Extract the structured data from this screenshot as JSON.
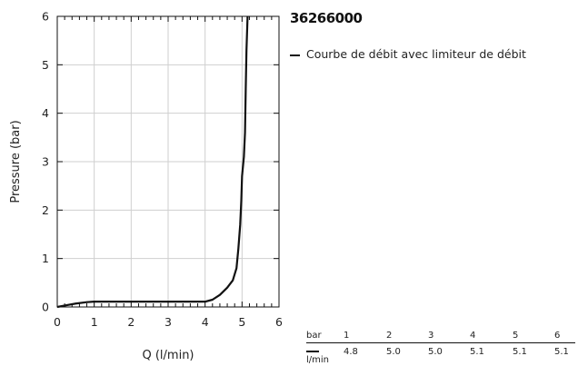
{
  "chart_data": {
    "type": "line",
    "title": "36266000",
    "xlabel": "Q (l/min)",
    "ylabel": "Pressure (bar)",
    "xlim": [
      0,
      6
    ],
    "ylim": [
      0,
      6
    ],
    "x_ticks": [
      "0",
      "1",
      "2",
      "3",
      "4",
      "5",
      "6"
    ],
    "y_ticks": [
      "0",
      "1",
      "2",
      "3",
      "4",
      "5",
      "6"
    ],
    "grid": true,
    "legend_position": "top-right",
    "series": [
      {
        "name": "Courbe de débit avec limiteur de débit",
        "color": "#111111",
        "points": [
          [
            0.0,
            0.0
          ],
          [
            0.2,
            0.03
          ],
          [
            0.5,
            0.07
          ],
          [
            0.8,
            0.1
          ],
          [
            1.0,
            0.11
          ],
          [
            2.0,
            0.11
          ],
          [
            3.0,
            0.11
          ],
          [
            4.0,
            0.11
          ],
          [
            4.2,
            0.15
          ],
          [
            4.4,
            0.25
          ],
          [
            4.6,
            0.4
          ],
          [
            4.75,
            0.55
          ],
          [
            4.85,
            0.8
          ],
          [
            4.9,
            1.2
          ],
          [
            4.95,
            1.7
          ],
          [
            4.98,
            2.2
          ],
          [
            5.0,
            2.7
          ],
          [
            5.05,
            3.1
          ],
          [
            5.08,
            3.6
          ],
          [
            5.1,
            4.5
          ],
          [
            5.12,
            5.3
          ],
          [
            5.15,
            6.0
          ]
        ]
      }
    ],
    "table": {
      "row_header_1": "bar",
      "row_header_2": "l/min",
      "pressure": [
        "1",
        "2",
        "3",
        "4",
        "5",
        "6"
      ],
      "flow": [
        "4.8",
        "5.0",
        "5.0",
        "5.1",
        "5.1",
        "5.1"
      ]
    }
  }
}
